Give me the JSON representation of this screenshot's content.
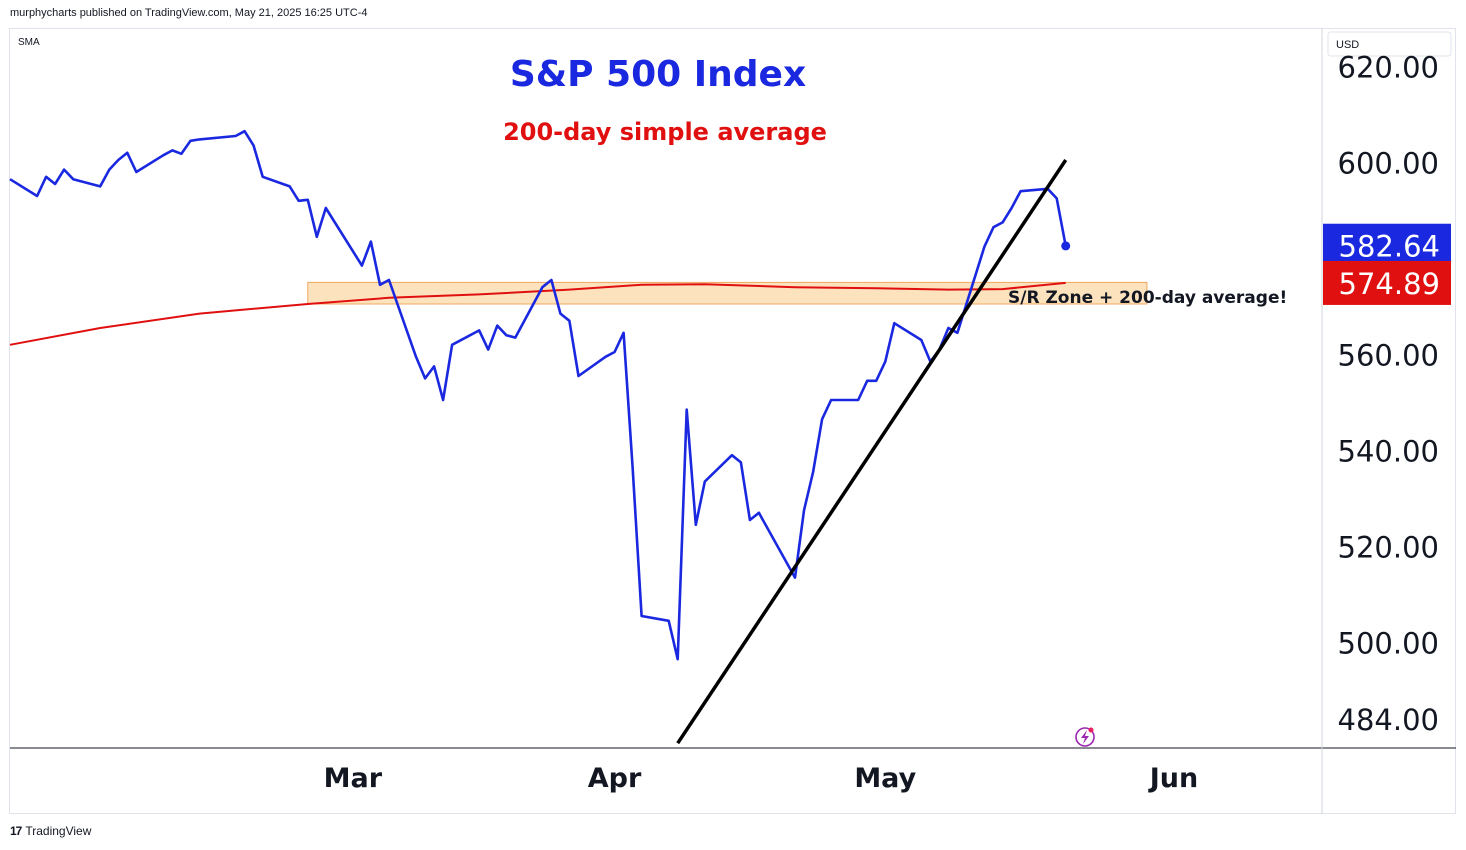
{
  "header": {
    "published_text": "murphycharts published on TradingView.com, May 21, 2025 16:25 UTC-4"
  },
  "indicator_label": "SMA",
  "currency_label": "USD",
  "footer": {
    "logo_glyph": "17",
    "brand": "TradingView"
  },
  "colors": {
    "price_line": "#1a28e0",
    "sma_line": "#e01010",
    "trendline": "#000000",
    "zone_fill": "#fbd9a8",
    "zone_border": "#f0a860",
    "title": "#1a28e0",
    "subtitle": "#e01010",
    "price_badge": "#1a28e0",
    "sma_badge": "#e01010"
  },
  "chart_data": {
    "type": "line",
    "title": "S&P 500 Index",
    "subtitle": "200-day simple average",
    "annotation": "S/R Zone + 200-day average!",
    "x_tick_labels": [
      "Mar",
      "Apr",
      "May",
      "Jun"
    ],
    "x_ticks": [
      "2025-03-03",
      "2025-04-01",
      "2025-05-01",
      "2025-06-02"
    ],
    "y_tick_labels": [
      "620.00",
      "600.00",
      "560.00",
      "540.00",
      "520.00",
      "500.00",
      "484.00"
    ],
    "ylim": [
      478,
      628
    ],
    "last_price": "582.64",
    "sma_value": "574.89",
    "sr_zone": {
      "from": "2025-02-26",
      "to": "2025-05-30",
      "low": 570.5,
      "high": 575.0
    },
    "trendline": [
      {
        "x": "2025-04-08",
        "y": 479.0
      },
      {
        "x": "2025-05-21",
        "y": 600.5
      }
    ],
    "series": [
      {
        "name": "S&P 500",
        "points": [
          [
            "2025-01-24",
            596.5
          ],
          [
            "2025-01-27",
            593.0
          ],
          [
            "2025-01-28",
            597.0
          ],
          [
            "2025-01-29",
            595.5
          ],
          [
            "2025-01-30",
            598.5
          ],
          [
            "2025-01-31",
            596.5
          ],
          [
            "2025-02-03",
            595.0
          ],
          [
            "2025-02-04",
            598.5
          ],
          [
            "2025-02-05",
            600.5
          ],
          [
            "2025-02-06",
            602.0
          ],
          [
            "2025-02-07",
            598.0
          ],
          [
            "2025-02-10",
            601.5
          ],
          [
            "2025-02-11",
            602.5
          ],
          [
            "2025-02-12",
            601.8
          ],
          [
            "2025-02-13",
            604.5
          ],
          [
            "2025-02-14",
            604.8
          ],
          [
            "2025-02-18",
            605.5
          ],
          [
            "2025-02-19",
            606.5
          ],
          [
            "2025-02-20",
            603.5
          ],
          [
            "2025-02-21",
            597.0
          ],
          [
            "2025-02-24",
            595.0
          ],
          [
            "2025-02-25",
            592.0
          ],
          [
            "2025-02-26",
            592.2
          ],
          [
            "2025-02-27",
            584.5
          ],
          [
            "2025-02-28",
            590.5
          ],
          [
            "2025-03-03",
            581.5
          ],
          [
            "2025-03-04",
            578.5
          ],
          [
            "2025-03-05",
            583.5
          ],
          [
            "2025-03-06",
            574.5
          ],
          [
            "2025-03-07",
            575.5
          ],
          [
            "2025-03-10",
            559.5
          ],
          [
            "2025-03-11",
            555.0
          ],
          [
            "2025-03-12",
            557.5
          ],
          [
            "2025-03-13",
            550.5
          ],
          [
            "2025-03-14",
            562.0
          ],
          [
            "2025-03-17",
            565.0
          ],
          [
            "2025-03-18",
            561.0
          ],
          [
            "2025-03-19",
            566.0
          ],
          [
            "2025-03-20",
            564.0
          ],
          [
            "2025-03-21",
            563.5
          ],
          [
            "2025-03-24",
            574.0
          ],
          [
            "2025-03-25",
            575.5
          ],
          [
            "2025-03-26",
            568.5
          ],
          [
            "2025-03-27",
            567.0
          ],
          [
            "2025-03-28",
            555.5
          ],
          [
            "2025-03-31",
            559.5
          ],
          [
            "2025-04-01",
            560.5
          ],
          [
            "2025-04-02",
            564.5
          ],
          [
            "2025-04-03",
            536.5
          ],
          [
            "2025-04-04",
            505.5
          ],
          [
            "2025-04-07",
            504.5
          ],
          [
            "2025-04-08",
            496.5
          ],
          [
            "2025-04-09",
            548.5
          ],
          [
            "2025-04-10",
            524.5
          ],
          [
            "2025-04-11",
            533.5
          ],
          [
            "2025-04-14",
            539.0
          ],
          [
            "2025-04-15",
            537.5
          ],
          [
            "2025-04-16",
            525.5
          ],
          [
            "2025-04-17",
            527.0
          ],
          [
            "2025-04-21",
            513.5
          ],
          [
            "2025-04-22",
            527.5
          ],
          [
            "2025-04-23",
            535.5
          ],
          [
            "2025-04-24",
            546.5
          ],
          [
            "2025-04-25",
            550.5
          ],
          [
            "2025-04-28",
            550.5
          ],
          [
            "2025-04-29",
            554.5
          ],
          [
            "2025-04-30",
            554.5
          ],
          [
            "2025-05-01",
            558.5
          ],
          [
            "2025-05-02",
            566.5
          ],
          [
            "2025-05-05",
            563.0
          ],
          [
            "2025-05-06",
            558.5
          ],
          [
            "2025-05-07",
            561.0
          ],
          [
            "2025-05-08",
            565.5
          ],
          [
            "2025-05-09",
            564.5
          ],
          [
            "2025-05-12",
            582.5
          ],
          [
            "2025-05-13",
            586.5
          ],
          [
            "2025-05-14",
            587.5
          ],
          [
            "2025-05-15",
            590.5
          ],
          [
            "2025-05-16",
            594.0
          ],
          [
            "2025-05-19",
            594.5
          ],
          [
            "2025-05-20",
            592.5
          ],
          [
            "2025-05-21",
            582.6
          ]
        ]
      },
      {
        "name": "200-day SMA",
        "points": [
          [
            "2025-01-24",
            562.0
          ],
          [
            "2025-02-03",
            565.5
          ],
          [
            "2025-02-14",
            568.5
          ],
          [
            "2025-02-26",
            570.5
          ],
          [
            "2025-03-07",
            571.8
          ],
          [
            "2025-03-17",
            572.5
          ],
          [
            "2025-03-27",
            573.5
          ],
          [
            "2025-04-04",
            574.5
          ],
          [
            "2025-04-11",
            574.6
          ],
          [
            "2025-04-21",
            574.0
          ],
          [
            "2025-04-30",
            573.8
          ],
          [
            "2025-05-08",
            573.5
          ],
          [
            "2025-05-14",
            573.6
          ],
          [
            "2025-05-21",
            574.9
          ]
        ]
      }
    ]
  }
}
